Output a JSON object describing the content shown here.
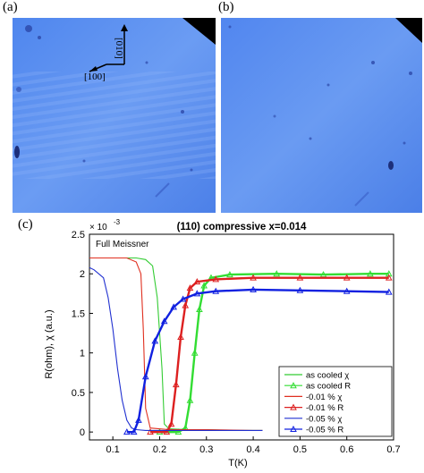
{
  "figure": {
    "panel_a_label": "(a)",
    "panel_b_label": "(b)",
    "panel_c_label": "(c)",
    "axis_label_010": "[010]",
    "axis_label_100": "[100]"
  },
  "chart_data": {
    "type": "line",
    "title": "(110) compressive x=0.014",
    "xlabel": "T(K)",
    "ylabel": "R(ohm), χ (a.u.)",
    "y_exponent": "× 10",
    "y_exponent_power": "-3",
    "annotation": "Full Meissner",
    "xlim": [
      0.05,
      0.7
    ],
    "ylim": [
      -0.1,
      2.5
    ],
    "xticks": [
      "0.1",
      "0.2",
      "0.3",
      "0.4",
      "0.5",
      "0.6",
      "0.7"
    ],
    "xtick_values": [
      0.1,
      0.2,
      0.3,
      0.4,
      0.5,
      0.6,
      0.7
    ],
    "yticks": [
      "0",
      "0.5",
      "1",
      "1.5",
      "2",
      "2.5"
    ],
    "ytick_values": [
      0,
      0.5,
      1,
      1.5,
      2,
      2.5
    ],
    "legend_position": "bottom-right",
    "series": [
      {
        "name": "as cooled χ",
        "kind": "chi",
        "color": "#33cc33",
        "x": [
          0.05,
          0.1,
          0.15,
          0.17,
          0.185,
          0.195,
          0.205,
          0.21,
          0.22,
          0.26,
          0.3,
          0.35,
          0.4,
          0.42
        ],
        "y": [
          2.2,
          2.2,
          2.2,
          2.18,
          2.1,
          1.7,
          0.8,
          0.1,
          0.04,
          0.03,
          0.03,
          0.02,
          0.02,
          0.02
        ]
      },
      {
        "name": "as cooled R",
        "kind": "R",
        "color": "#33dd33",
        "x": [
          0.2,
          0.24,
          0.255,
          0.265,
          0.275,
          0.285,
          0.295,
          0.31,
          0.35,
          0.45,
          0.55,
          0.65,
          0.69
        ],
        "y": [
          0.0,
          0.0,
          0.05,
          0.4,
          1.0,
          1.55,
          1.85,
          1.95,
          1.99,
          2.0,
          1.99,
          2.0,
          2.0
        ]
      },
      {
        "name": "-0.01 % χ",
        "kind": "chi",
        "color": "#e03020",
        "x": [
          0.05,
          0.1,
          0.13,
          0.15,
          0.16,
          0.165,
          0.17,
          0.18,
          0.22,
          0.3,
          0.4,
          0.42
        ],
        "y": [
          2.2,
          2.2,
          2.2,
          2.15,
          2.0,
          1.3,
          0.3,
          0.05,
          0.03,
          0.03,
          0.02,
          0.02
        ]
      },
      {
        "name": "-0.01 % R",
        "kind": "R",
        "color": "#dd2020",
        "x": [
          0.18,
          0.215,
          0.225,
          0.235,
          0.245,
          0.255,
          0.265,
          0.28,
          0.32,
          0.4,
          0.5,
          0.6,
          0.69
        ],
        "y": [
          0.0,
          0.0,
          0.1,
          0.6,
          1.2,
          1.6,
          1.82,
          1.9,
          1.93,
          1.95,
          1.95,
          1.95,
          1.95
        ]
      },
      {
        "name": "-0.05 % χ",
        "kind": "chi",
        "color": "#2030d0",
        "x": [
          0.05,
          0.06,
          0.08,
          0.09,
          0.1,
          0.11,
          0.12,
          0.13,
          0.14,
          0.15,
          0.17,
          0.22,
          0.3,
          0.4,
          0.42
        ],
        "y": [
          2.08,
          2.05,
          1.95,
          1.7,
          1.3,
          0.8,
          0.4,
          0.15,
          0.05,
          0.03,
          0.02,
          0.02,
          0.02,
          0.02,
          0.02
        ]
      },
      {
        "name": "-0.05 % R",
        "kind": "R",
        "color": "#1020e0",
        "x": [
          0.13,
          0.145,
          0.155,
          0.17,
          0.19,
          0.21,
          0.23,
          0.25,
          0.28,
          0.32,
          0.4,
          0.5,
          0.6,
          0.69
        ],
        "y": [
          0.0,
          0.0,
          0.15,
          0.7,
          1.15,
          1.4,
          1.58,
          1.68,
          1.75,
          1.78,
          1.8,
          1.79,
          1.78,
          1.77
        ]
      }
    ]
  }
}
